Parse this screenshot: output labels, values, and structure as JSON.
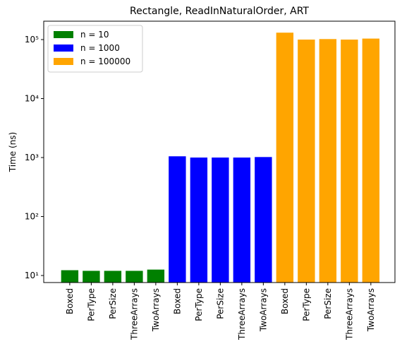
{
  "chart_data": {
    "type": "bar",
    "title": "Rectangle, ReadInNaturalOrder, ART",
    "ylabel": "Time (ns)",
    "log_y": true,
    "legend": "upper left",
    "categories": [
      "Boxed",
      "PerType",
      "PerSize",
      "ThreeArrays",
      "TwoArrays",
      "Boxed",
      "PerType",
      "PerSize",
      "ThreeArrays",
      "TwoArrays",
      "Boxed",
      "PerType",
      "PerSize",
      "ThreeArrays",
      "TwoArrays"
    ],
    "series": [
      {
        "name": "n = 10",
        "color": "#008000",
        "values": [
          12.3,
          12,
          12,
          12,
          12.6,
          null,
          null,
          null,
          null,
          null,
          null,
          null,
          null,
          null,
          null
        ]
      },
      {
        "name": "n = 1000",
        "color": "#0000ff",
        "values": [
          null,
          null,
          null,
          null,
          null,
          1050,
          1000,
          1000,
          1000,
          1020,
          null,
          null,
          null,
          null,
          null
        ]
      },
      {
        "name": "n = 100000",
        "color": "#ffa500",
        "values": [
          null,
          null,
          null,
          null,
          null,
          null,
          null,
          null,
          null,
          null,
          131000,
          100000,
          102000,
          100000,
          104000
        ]
      }
    ],
    "ylim": [
      7.6,
      205000
    ],
    "yticks": [
      {
        "value": 10,
        "label": "10¹"
      },
      {
        "value": 100,
        "label": "10²"
      },
      {
        "value": 1000,
        "label": "10³"
      },
      {
        "value": 10000,
        "label": "10⁴"
      },
      {
        "value": 100000,
        "label": "10⁵"
      }
    ]
  }
}
